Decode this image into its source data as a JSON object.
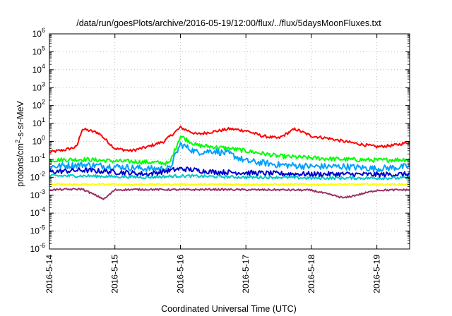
{
  "chart_data": {
    "type": "line",
    "title": "/data/run/goesPlots/archive/2016-05-19/12:00/flux/../flux/5daysMoonFluxes.txt",
    "xlabel": "Coordinated Universal Time (UTC)",
    "ylabel": {
      "base": "protons/cm",
      "sup": "2",
      "rest": "-s-sr-MeV"
    },
    "y_scale": "log",
    "ylim": [
      1e-06,
      1000000.0
    ],
    "xlim": [
      "2016-05-14 00:00",
      "2016-05-19 12:00"
    ],
    "x_ticks": [
      "2016-5-14",
      "2016-5-15",
      "2016-5-16",
      "2016-5-17",
      "2016-5-18",
      "2016-5-19"
    ],
    "y_ticks": [
      {
        "base": "10",
        "exp": "-6"
      },
      {
        "base": "10",
        "exp": "-5"
      },
      {
        "base": "10",
        "exp": "-4"
      },
      {
        "base": "10",
        "exp": "-3"
      },
      {
        "base": "10",
        "exp": "-2"
      },
      {
        "base": "10",
        "exp": "-1"
      },
      {
        "base": "10",
        "exp": "0"
      },
      {
        "base": "10",
        "exp": "1"
      },
      {
        "base": "10",
        "exp": "2"
      },
      {
        "base": "10",
        "exp": "3"
      },
      {
        "base": "10",
        "exp": "4"
      },
      {
        "base": "10",
        "exp": "5"
      },
      {
        "base": "10",
        "exp": "6"
      }
    ],
    "grid": true,
    "legend": "none",
    "series": [
      {
        "color": "#ff0000",
        "x": [
          "2016-05-14 00:00",
          "2016-05-14 06:00",
          "2016-05-14 10:00",
          "2016-05-14 12:00",
          "2016-05-14 18:00",
          "2016-05-15 00:00",
          "2016-05-15 06:00",
          "2016-05-15 12:00",
          "2016-05-15 18:00",
          "2016-05-16 00:00",
          "2016-05-16 06:00",
          "2016-05-16 12:00",
          "2016-05-16 18:00",
          "2016-05-17 00:00",
          "2016-05-17 06:00",
          "2016-05-17 12:00",
          "2016-05-17 18:00",
          "2016-05-18 00:00",
          "2016-05-18 06:00",
          "2016-05-18 12:00",
          "2016-05-18 18:00",
          "2016-05-19 00:00",
          "2016-05-19 06:00",
          "2016-05-19 12:00"
        ],
        "y": [
          0.25,
          0.35,
          0.5,
          5,
          3,
          0.4,
          0.3,
          0.5,
          1,
          6,
          2.5,
          3.5,
          5,
          4,
          2,
          1.5,
          5,
          2,
          1.5,
          1,
          0.7,
          0.5,
          0.6,
          0.9
        ]
      },
      {
        "color": "#00ff00",
        "x": [
          "2016-05-14 00:00",
          "2016-05-14 12:00",
          "2016-05-15 00:00",
          "2016-05-15 12:00",
          "2016-05-15 20:00",
          "2016-05-16 00:00",
          "2016-05-16 06:00",
          "2016-05-16 12:00",
          "2016-05-16 18:00",
          "2016-05-17 00:00",
          "2016-05-17 12:00",
          "2016-05-18 00:00",
          "2016-05-18 12:00",
          "2016-05-19 00:00",
          "2016-05-19 12:00"
        ],
        "y": [
          0.09,
          0.1,
          0.08,
          0.07,
          0.06,
          2,
          0.6,
          0.5,
          0.4,
          0.3,
          0.15,
          0.12,
          0.1,
          0.09,
          0.1
        ]
      },
      {
        "color": "#00a0ff",
        "x": [
          "2016-05-14 00:00",
          "2016-05-14 12:00",
          "2016-05-15 00:00",
          "2016-05-15 12:00",
          "2016-05-15 20:00",
          "2016-05-16 00:00",
          "2016-05-16 06:00",
          "2016-05-16 12:00",
          "2016-05-16 18:00",
          "2016-05-17 00:00",
          "2016-05-17 12:00",
          "2016-05-18 00:00",
          "2016-05-18 12:00",
          "2016-05-19 00:00",
          "2016-05-19 12:00"
        ],
        "y": [
          0.04,
          0.05,
          0.04,
          0.03,
          0.03,
          0.7,
          0.25,
          0.3,
          0.2,
          0.08,
          0.05,
          0.04,
          0.04,
          0.03,
          0.04
        ]
      },
      {
        "color": "#0000cc",
        "x": [
          "2016-05-14 00:00",
          "2016-05-14 12:00",
          "2016-05-15 00:00",
          "2016-05-15 12:00",
          "2016-05-16 00:00",
          "2016-05-16 12:00",
          "2016-05-17 00:00",
          "2016-05-17 12:00",
          "2016-05-18 00:00",
          "2016-05-18 12:00",
          "2016-05-19 00:00",
          "2016-05-19 12:00"
        ],
        "y": [
          0.02,
          0.025,
          0.02,
          0.015,
          0.03,
          0.02,
          0.018,
          0.016,
          0.015,
          0.015,
          0.014,
          0.015
        ]
      },
      {
        "color": "#00c8c8",
        "x": [
          "2016-05-14 00:00",
          "2016-05-14 12:00",
          "2016-05-15 00:00",
          "2016-05-15 12:00",
          "2016-05-16 00:00",
          "2016-05-16 12:00",
          "2016-05-17 00:00",
          "2016-05-17 12:00",
          "2016-05-18 00:00",
          "2016-05-18 12:00",
          "2016-05-19 00:00",
          "2016-05-19 12:00"
        ],
        "y": [
          0.012,
          0.012,
          0.011,
          0.01,
          0.012,
          0.011,
          0.01,
          0.01,
          0.009,
          0.009,
          0.009,
          0.009
        ]
      },
      {
        "color": "#ffff00",
        "x": [
          "2016-05-14 00:00",
          "2016-05-19 12:00"
        ],
        "y": [
          0.004,
          0.004
        ]
      },
      {
        "color": "#993366",
        "x": [
          "2016-05-14 00:00",
          "2016-05-14 12:00",
          "2016-05-14 20:00",
          "2016-05-15 00:00",
          "2016-05-15 12:00",
          "2016-05-16 00:00",
          "2016-05-16 12:00",
          "2016-05-17 00:00",
          "2016-05-17 12:00",
          "2016-05-18 00:00",
          "2016-05-18 12:00",
          "2016-05-19 00:00",
          "2016-05-19 12:00"
        ],
        "y": [
          0.002,
          0.0022,
          0.0006,
          0.002,
          0.0021,
          0.002,
          0.0021,
          0.002,
          0.002,
          0.0019,
          0.0007,
          0.0019,
          0.002
        ]
      }
    ]
  }
}
